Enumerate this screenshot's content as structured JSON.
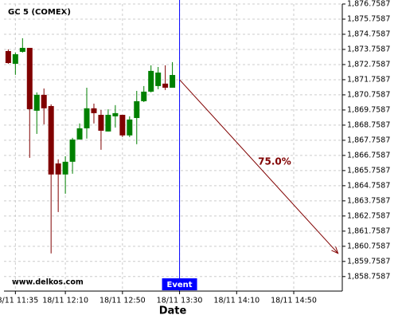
{
  "chart_data": {
    "type": "candlestick",
    "title": "GC 5 (COMEX)",
    "watermark": "www.delkos.com",
    "x_label": "Date",
    "x": [
      "18/11 11:30",
      "18/11 11:35",
      "18/11 11:40",
      "18/11 11:45",
      "18/11 11:50",
      "18/11 11:55",
      "18/11 12:00",
      "18/11 12:05",
      "18/11 12:10",
      "18/11 12:15",
      "18/11 12:20",
      "18/11 12:25",
      "18/11 12:30",
      "18/11 12:35",
      "18/11 12:40",
      "18/11 12:45",
      "18/11 12:50",
      "18/11 12:55",
      "18/11 13:00",
      "18/11 13:05",
      "18/11 13:10",
      "18/11 13:15",
      "18/11 13:20",
      "18/11 13:25"
    ],
    "open": [
      1873.65,
      1872.81,
      1873.6,
      1873.86,
      1869.71,
      1870.76,
      1870.02,
      1866.23,
      1865.5,
      1866.34,
      1867.81,
      1868.55,
      1869.87,
      1869.44,
      1868.34,
      1869.34,
      1869.44,
      1868.08,
      1869.23,
      1870.34,
      1870.97,
      1871.34,
      1871.5,
      1871.23
    ],
    "high": [
      1873.76,
      1873.55,
      1874.5,
      1873.86,
      1870.92,
      1871.18,
      1870.13,
      1866.5,
      1866.71,
      1867.92,
      1868.87,
      1871.23,
      1870.18,
      1869.76,
      1869.81,
      1870.08,
      1869.44,
      1869.34,
      1871.02,
      1871.34,
      1872.71,
      1872.6,
      1872.71,
      1872.92
    ],
    "low": [
      1872.81,
      1872.08,
      1873.55,
      1866.6,
      1868.18,
      1868.81,
      1860.29,
      1863.02,
      1864.23,
      1865.55,
      1867.81,
      1867.87,
      1868.87,
      1867.13,
      1868.34,
      1868.6,
      1867.97,
      1867.97,
      1867.5,
      1870.28,
      1870.92,
      1871.13,
      1871.08,
      1871.23
    ],
    "close": [
      1872.86,
      1873.44,
      1873.86,
      1869.81,
      1870.76,
      1869.87,
      1865.5,
      1865.5,
      1866.34,
      1867.81,
      1868.55,
      1869.87,
      1869.55,
      1868.39,
      1869.44,
      1869.55,
      1868.08,
      1869.13,
      1870.34,
      1870.97,
      1872.34,
      1872.23,
      1871.23,
      1872.07
    ],
    "up_color": "#008000",
    "down_color": "#800000",
    "xlim": [
      "18/11 11:27",
      "18/11 15:24"
    ],
    "xticks": [
      "18/11 11:35",
      "18/11 12:10",
      "18/11 12:50",
      "18/11 13:30",
      "18/11 14:10",
      "18/11 14:50"
    ],
    "ylim": [
      1857.8,
      1876.7587
    ],
    "yticks": [
      {
        "value": 1858.7587,
        "label": "1,858.7587"
      },
      {
        "value": 1859.7587,
        "label": "1,859.7587"
      },
      {
        "value": 1860.7587,
        "label": "1,860.7587"
      },
      {
        "value": 1861.7587,
        "label": "1,861.7587"
      },
      {
        "value": 1862.7587,
        "label": "1,862.7587"
      },
      {
        "value": 1863.7587,
        "label": "1,863.7587"
      },
      {
        "value": 1864.7587,
        "label": "1,864.7587"
      },
      {
        "value": 1865.7587,
        "label": "1,865.7587"
      },
      {
        "value": 1866.7587,
        "label": "1,866.7587"
      },
      {
        "value": 1867.7587,
        "label": "1,867.7587"
      },
      {
        "value": 1868.7587,
        "label": "1,868.7587"
      },
      {
        "value": 1869.7587,
        "label": "1,869.7587"
      },
      {
        "value": 1870.7587,
        "label": "1,870.7587"
      },
      {
        "value": 1871.7587,
        "label": "1,871.7587"
      },
      {
        "value": 1872.7587,
        "label": "1,872.7587"
      },
      {
        "value": 1873.7587,
        "label": "1,873.7587"
      },
      {
        "value": 1874.7587,
        "label": "1,874.7587"
      },
      {
        "value": 1875.7587,
        "label": "1,875.7587"
      },
      {
        "value": 1876.7587,
        "label": "1,876.7587"
      }
    ],
    "grid": true,
    "event": {
      "x": "18/11 13:30",
      "label": "Event",
      "color": "#0000ff"
    },
    "projection": {
      "x": [
        "18/11 13:30",
        "18/11 15:21"
      ],
      "y": [
        1871.76,
        1860.29
      ],
      "label": "75.0%",
      "color": "#800000"
    }
  }
}
